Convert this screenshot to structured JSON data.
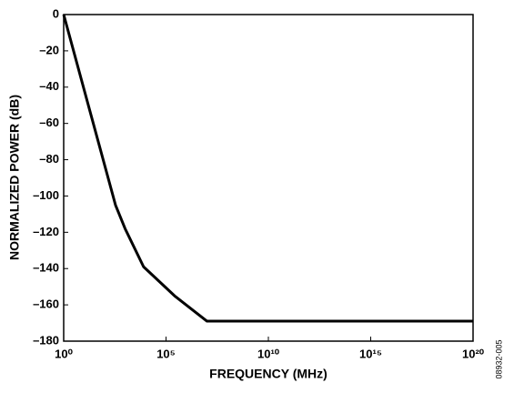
{
  "chart_data": {
    "type": "line",
    "x_label": "FREQUENCY (MHz)",
    "y_label": "NORMALIZED POWER (dB)",
    "figure_id": "08932-005",
    "x_scale": "log",
    "xlim": [
      1,
      1e+20
    ],
    "xticks": [
      {
        "value": 1,
        "label": "10⁰"
      },
      {
        "value": 100000,
        "label": "10⁵"
      },
      {
        "value": 10000000000,
        "label": "10¹⁰"
      },
      {
        "value": 1000000000000000.0,
        "label": "10¹⁵"
      },
      {
        "value": 1e+20,
        "label": "10²⁰"
      }
    ],
    "ylim": [
      -180,
      0
    ],
    "yticks": [
      {
        "value": 0,
        "label": "0"
      },
      {
        "value": -20,
        "label": "–20"
      },
      {
        "value": -40,
        "label": "–40"
      },
      {
        "value": -60,
        "label": "–60"
      },
      {
        "value": -80,
        "label": "–80"
      },
      {
        "value": -100,
        "label": "–100"
      },
      {
        "value": -120,
        "label": "–120"
      },
      {
        "value": -140,
        "label": "–140"
      },
      {
        "value": -160,
        "label": "–160"
      },
      {
        "value": -180,
        "label": "–180"
      }
    ],
    "grid": false,
    "series": [
      {
        "color": "#000000",
        "x": [
          1,
          340,
          1000,
          8000,
          260000,
          10000000,
          1e+20
        ],
        "values": [
          0,
          -105,
          -118,
          -139,
          -155,
          -169,
          -169
        ]
      }
    ]
  }
}
